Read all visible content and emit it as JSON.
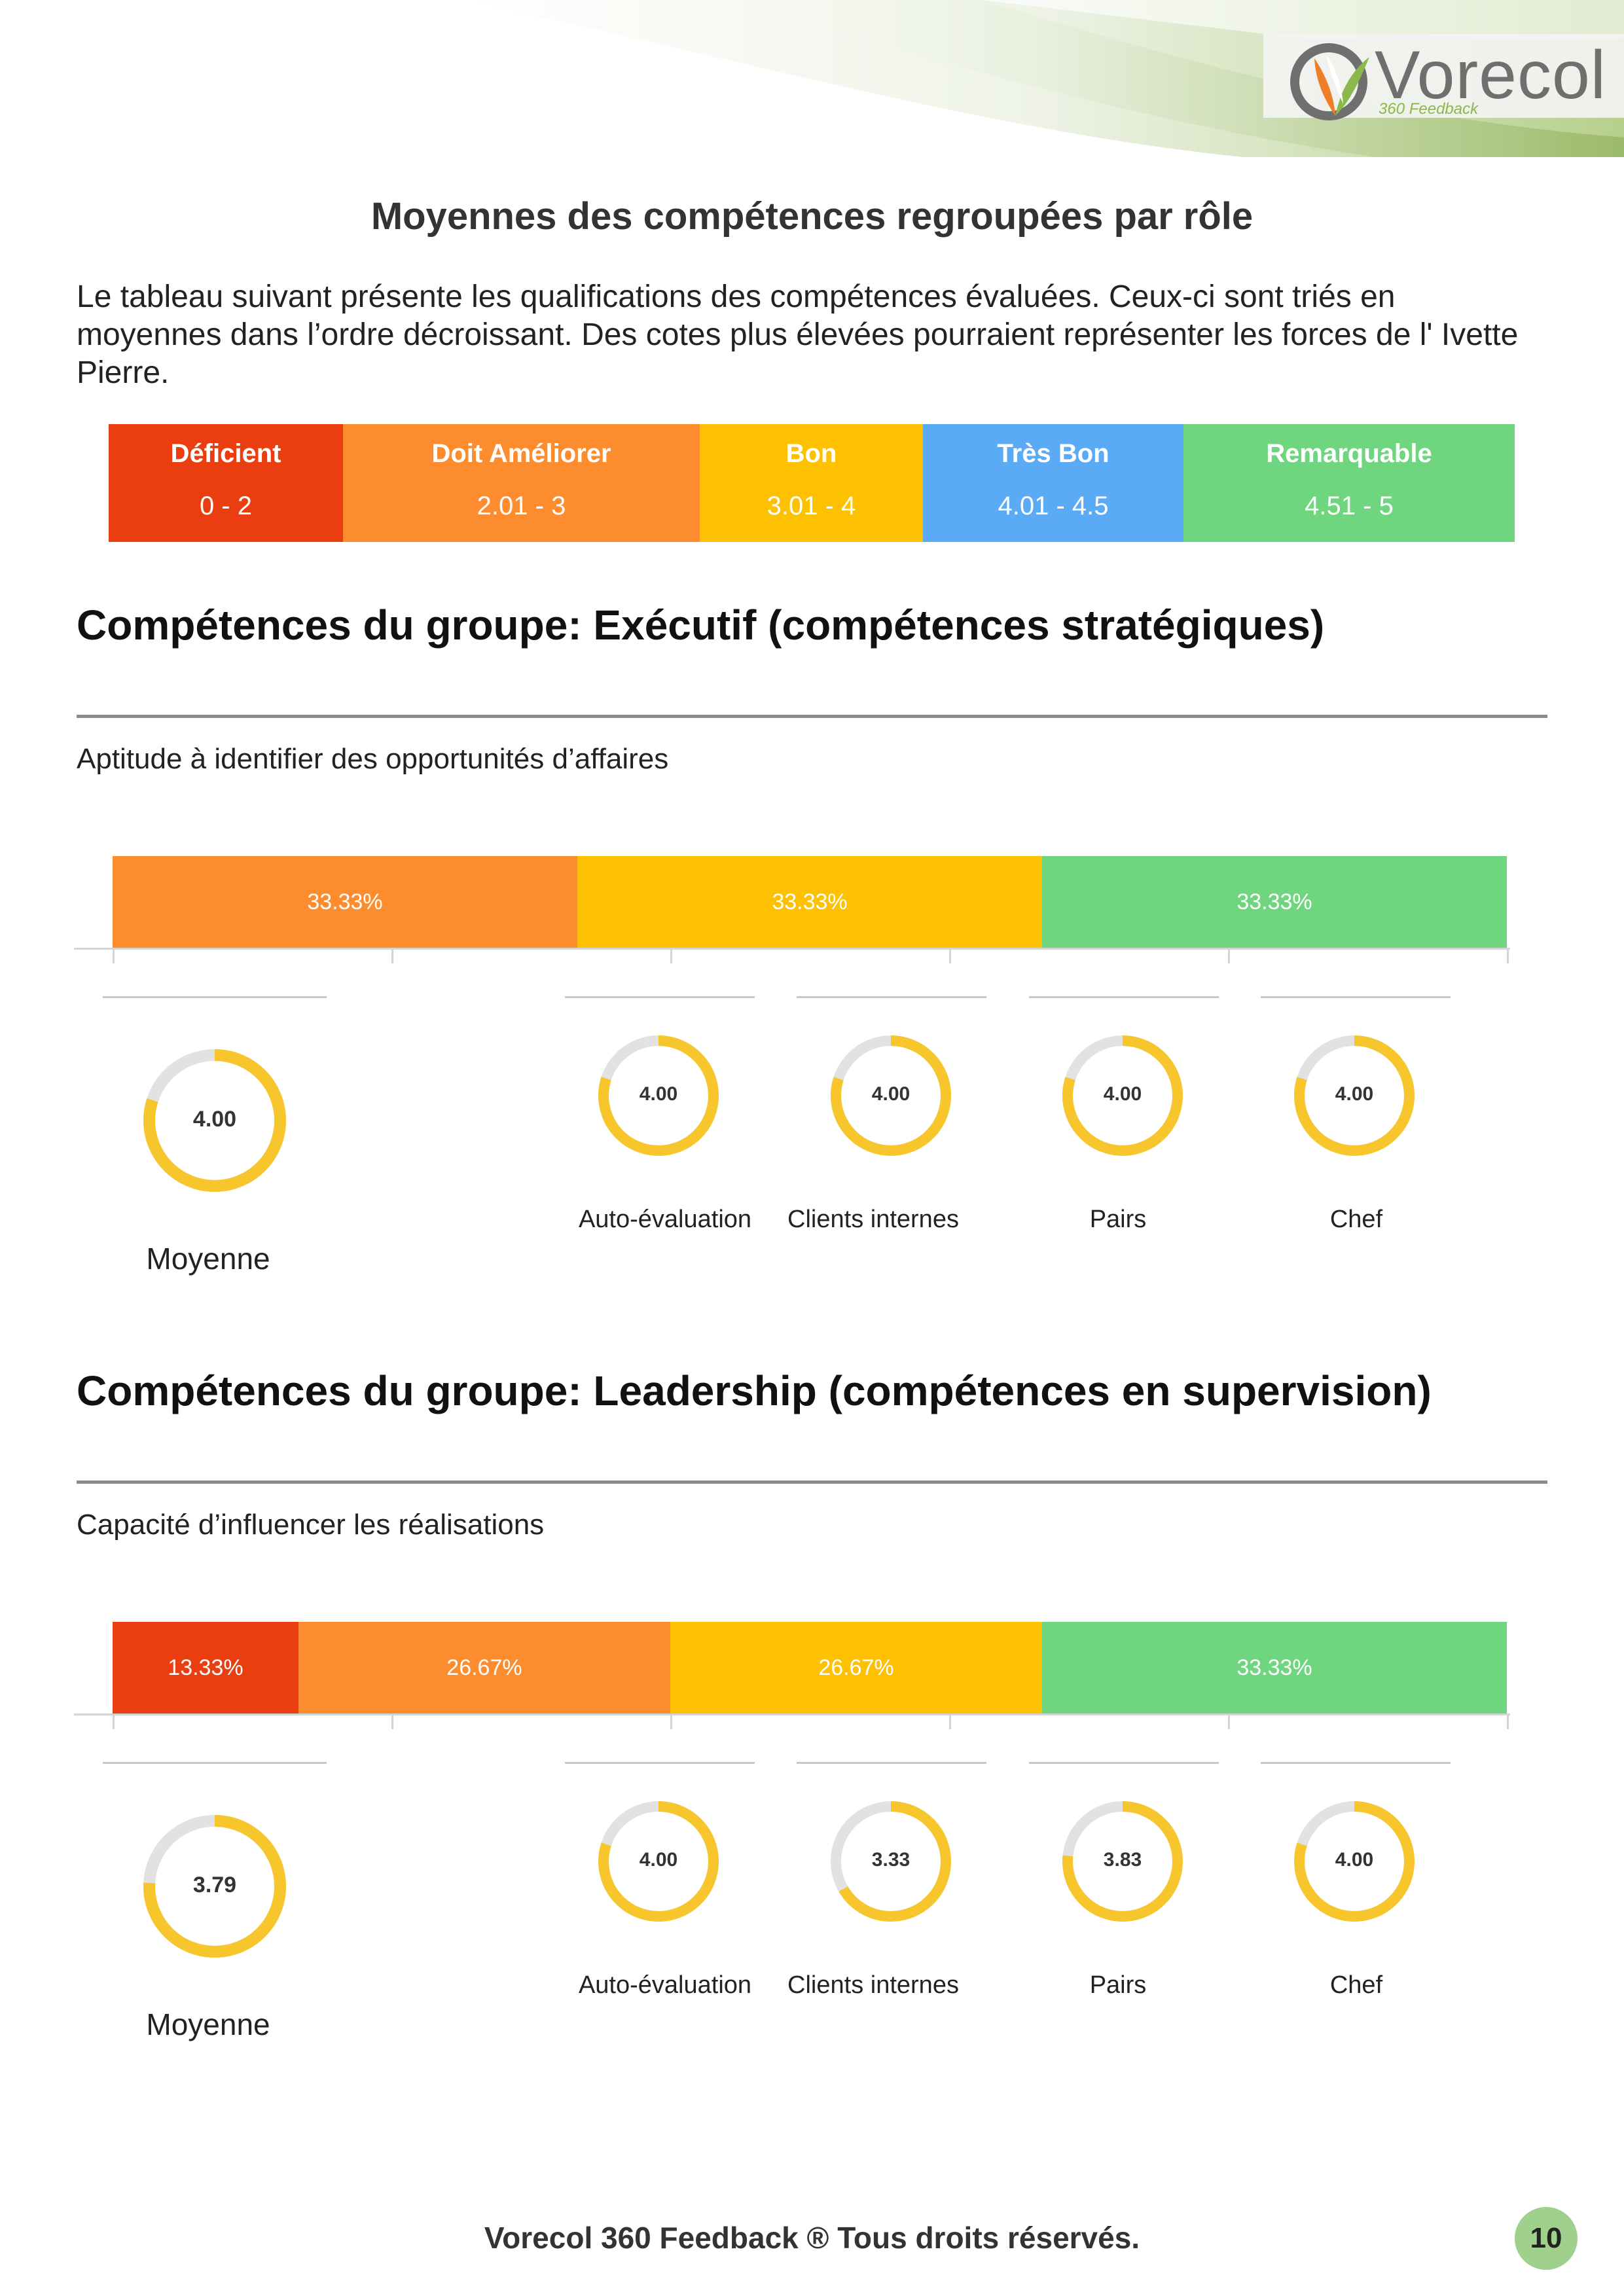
{
  "brand": {
    "name": "Vorecol",
    "sub": "360 Feedback",
    "colors": {
      "green": "#8ab84a",
      "orange": "#f07e26",
      "gray": "#6f6f6f"
    }
  },
  "page_title": "Moyennes des compétences regroupées par rôle",
  "intro": "Le tableau suivant présente les qualifications des compétences évaluées. Ceux-ci sont triés en moyennes dans l’ordre décroissant. Des cotes plus élevées pourraient représenter les forces de l' Ivette Pierre.",
  "legend": [
    {
      "name": "Déficient",
      "range": "0  -  2",
      "color": "#ea3e10"
    },
    {
      "name": "Doit Améliorer",
      "range": "2.01  -  3",
      "color": "#fd8c2e"
    },
    {
      "name": "Bon",
      "range": "3.01  -  4",
      "color": "#fdc102"
    },
    {
      "name": "Très Bon",
      "range": "4.01  -  4.5",
      "color": "#5aaaf6"
    },
    {
      "name": "Remarquable",
      "range": "4.51  -  5",
      "color": "#70d57f"
    }
  ],
  "groups": [
    {
      "title": "Compétences du groupe: Exécutif (compétences stratégiques)",
      "competency": "Aptitude à identifier des opportunités d’affaires",
      "distribution": [
        {
          "label": "33.33%",
          "value": 33.33,
          "color": "#fd8c2e"
        },
        {
          "label": "33.33%",
          "value": 33.33,
          "color": "#fdc102"
        },
        {
          "label": "33.33%",
          "value": 33.33,
          "color": "#70d57f"
        }
      ],
      "average": {
        "label": "Moyenne",
        "value": "4.00",
        "score": 4.0
      },
      "raters": [
        {
          "label": "Auto-évaluation",
          "value": "4.00",
          "score": 4.0
        },
        {
          "label": "Clients internes",
          "value": "4.00",
          "score": 4.0
        },
        {
          "label": "Pairs",
          "value": "4.00",
          "score": 4.0
        },
        {
          "label": "Chef",
          "value": "4.00",
          "score": 4.0
        }
      ]
    },
    {
      "title": "Compétences du groupe: Leadership (compétences en supervision)",
      "competency": "Capacité d’influencer les réalisations",
      "distribution": [
        {
          "label": "13.33%",
          "value": 13.33,
          "color": "#ea3e10"
        },
        {
          "label": "26.67%",
          "value": 26.67,
          "color": "#fd8c2e"
        },
        {
          "label": "26.67%",
          "value": 26.67,
          "color": "#fdc102"
        },
        {
          "label": "33.33%",
          "value": 33.33,
          "color": "#70d57f"
        }
      ],
      "average": {
        "label": "Moyenne",
        "value": "3.79",
        "score": 3.79
      },
      "raters": [
        {
          "label": "Auto-évaluation",
          "value": "4.00",
          "score": 4.0
        },
        {
          "label": "Clients internes",
          "value": "3.33",
          "score": 3.33
        },
        {
          "label": "Pairs",
          "value": "3.83",
          "score": 3.83
        },
        {
          "label": "Chef",
          "value": "4.00",
          "score": 4.0
        }
      ]
    }
  ],
  "donut_colors": {
    "fill": "#f7c62c",
    "track": "#e2e2e2"
  },
  "footer": "Vorecol 360 Feedback ® Tous droits réservés.",
  "page_number": "10"
}
